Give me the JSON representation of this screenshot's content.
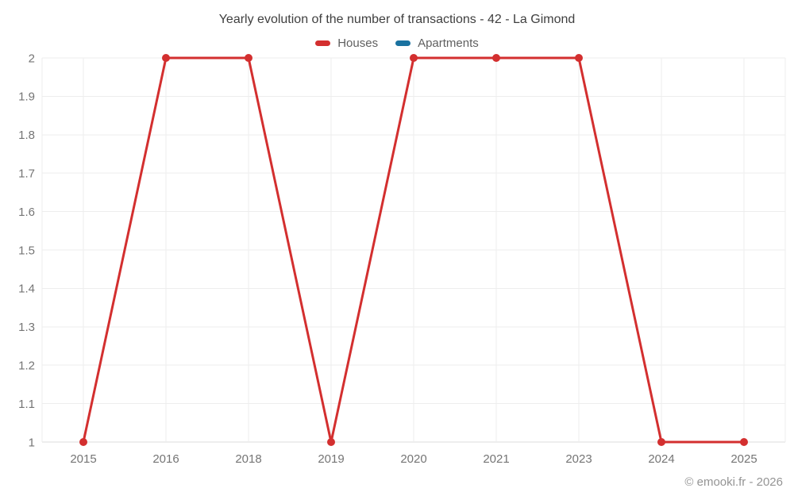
{
  "title": "Yearly evolution of the number of transactions - 42 - La Gimond",
  "legend": [
    {
      "label": "Houses",
      "color": "#d32f2f"
    },
    {
      "label": "Apartments",
      "color": "#1a72a0"
    }
  ],
  "watermark": "© emooki.fr - 2026",
  "axis": {
    "tick_color": "#757575",
    "grid_color": "#ededed",
    "baseline_color": "#dcdcdc"
  },
  "chart_data": {
    "type": "line",
    "title": "Yearly evolution of the number of transactions - 42 - La Gimond",
    "categories": [
      "2015",
      "2016",
      "2018",
      "2019",
      "2020",
      "2021",
      "2023",
      "2024",
      "2025"
    ],
    "series": [
      {
        "name": "Houses",
        "color": "#d32f2f",
        "values": [
          1,
          2,
          2,
          1,
          2,
          2,
          2,
          1,
          1
        ]
      },
      {
        "name": "Apartments",
        "color": "#1a72a0",
        "values": []
      }
    ],
    "xlabel": "",
    "ylabel": "",
    "ylim": [
      1,
      2
    ],
    "ytick_step": 0.1,
    "grid": true,
    "legend_position": "top",
    "point_radius": 5,
    "line_width": 3
  }
}
